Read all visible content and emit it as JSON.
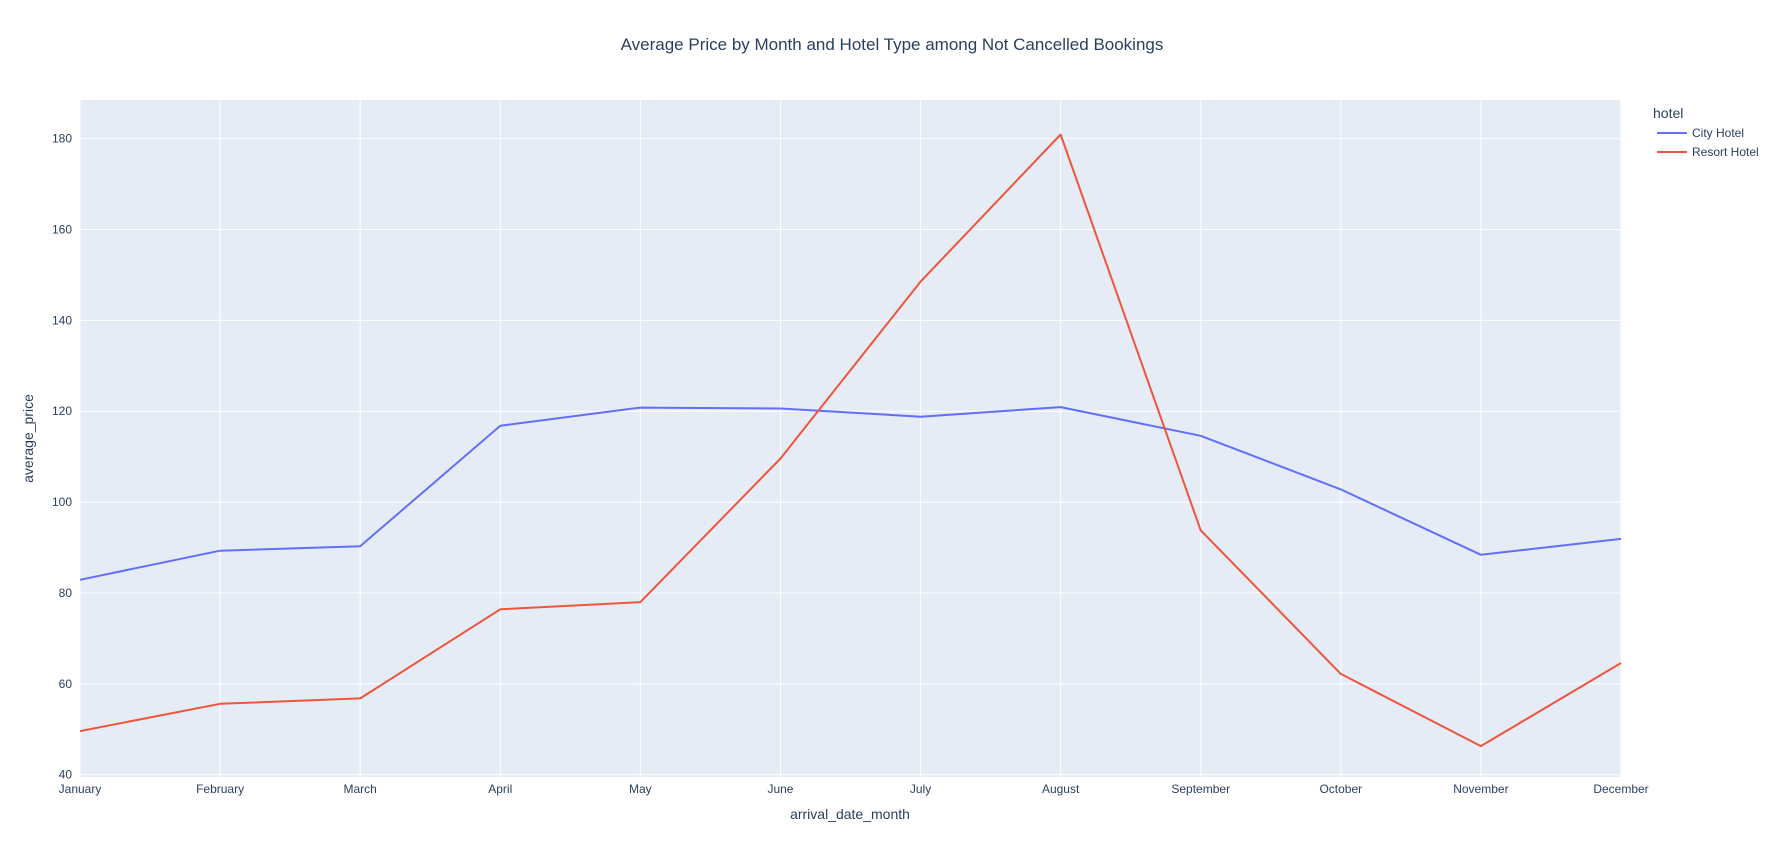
{
  "chart_data": {
    "type": "line",
    "title": "Average Price by Month and Hotel Type among Not Cancelled Bookings",
    "xlabel": "arrival_date_month",
    "ylabel": "average_price",
    "categories": [
      "January",
      "February",
      "March",
      "April",
      "May",
      "June",
      "July",
      "August",
      "September",
      "October",
      "November",
      "December"
    ],
    "ylim": [
      39.5,
      188.5
    ],
    "yticks": [
      40,
      60,
      80,
      100,
      120,
      140,
      160,
      180
    ],
    "grid": true,
    "legend_title": "hotel",
    "legend_position": "top-right",
    "series": [
      {
        "name": "City Hotel",
        "color": "#636efa",
        "values": [
          82.9,
          89.3,
          90.3,
          116.8,
          120.8,
          120.6,
          118.8,
          120.9,
          114.6,
          102.8,
          88.4,
          91.9
        ]
      },
      {
        "name": "Resort Hotel",
        "color": "#ef553b",
        "values": [
          49.6,
          55.6,
          56.8,
          76.4,
          78.0,
          109.6,
          148.5,
          180.9,
          93.8,
          62.2,
          46.3,
          64.6
        ]
      }
    ]
  }
}
